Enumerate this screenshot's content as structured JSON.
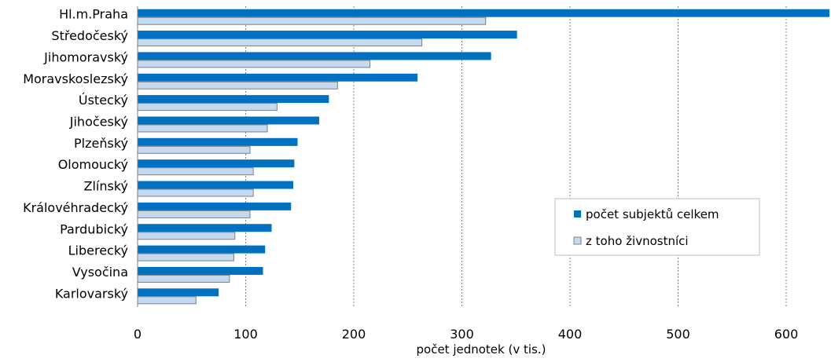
{
  "chart_data": {
    "type": "bar",
    "orientation": "horizontal",
    "categories": [
      "Hl.m.Praha",
      "Středočeský",
      "Jihomoravský",
      "Moravskoslezský",
      "Ústecký",
      "Jihočeský",
      "Plzeňský",
      "Olomoucký",
      "Zlínský",
      "Královéhradecký",
      "Pardubický",
      "Liberecký",
      "Vysočina",
      "Karlovarský"
    ],
    "series": [
      {
        "name": "počet subjektů celkem",
        "color": "#0070c0",
        "values": [
          640,
          351,
          327,
          259,
          177,
          168,
          148,
          145,
          144,
          142,
          124,
          118,
          116,
          75
        ]
      },
      {
        "name": "z toho živnostníci",
        "color": "#c5d9f1",
        "stroke": "#7f7f7f",
        "values": [
          322,
          263,
          215,
          185,
          129,
          120,
          104,
          107,
          107,
          104,
          90,
          89,
          85,
          54
        ]
      }
    ],
    "xlabel": "počet jednotek (v tis.)",
    "xlim": [
      0,
      640
    ],
    "xticks": [
      "0",
      "100",
      "200",
      "300",
      "400",
      "500",
      "600"
    ],
    "grid": "vertical dotted",
    "legend_position": "lower-right"
  }
}
